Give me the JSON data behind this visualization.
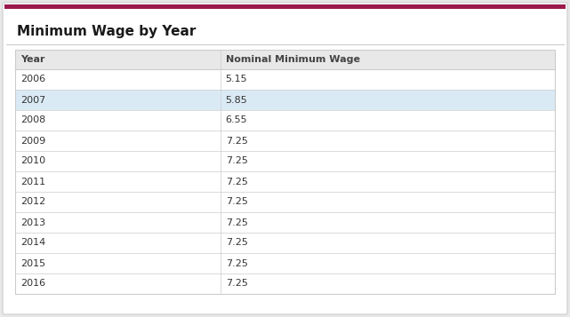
{
  "title": "Minimum Wage by Year",
  "col_headers": [
    "Year",
    "Nominal Minimum Wage"
  ],
  "rows": [
    [
      "2006",
      "5.15"
    ],
    [
      "2007",
      "5.85"
    ],
    [
      "2008",
      "6.55"
    ],
    [
      "2009",
      "7.25"
    ],
    [
      "2010",
      "7.25"
    ],
    [
      "2011",
      "7.25"
    ],
    [
      "2012",
      "7.25"
    ],
    [
      "2013",
      "7.25"
    ],
    [
      "2014",
      "7.25"
    ],
    [
      "2015",
      "7.25"
    ],
    [
      "2016",
      "7.25"
    ]
  ],
  "highlighted_row": 1,
  "highlight_color": "#daeaf5",
  "header_bg_color": "#e8e8e8",
  "row_bg_color": "#ffffff",
  "border_color": "#cccccc",
  "title_color": "#1a1a1a",
  "header_text_color": "#444444",
  "cell_text_color": "#333333",
  "top_bar_color": "#9b1a4b",
  "outer_bg_color": "#e8e8e8",
  "inner_bg_color": "#ffffff",
  "title_fontsize": 11,
  "header_fontsize": 8,
  "cell_fontsize": 8
}
